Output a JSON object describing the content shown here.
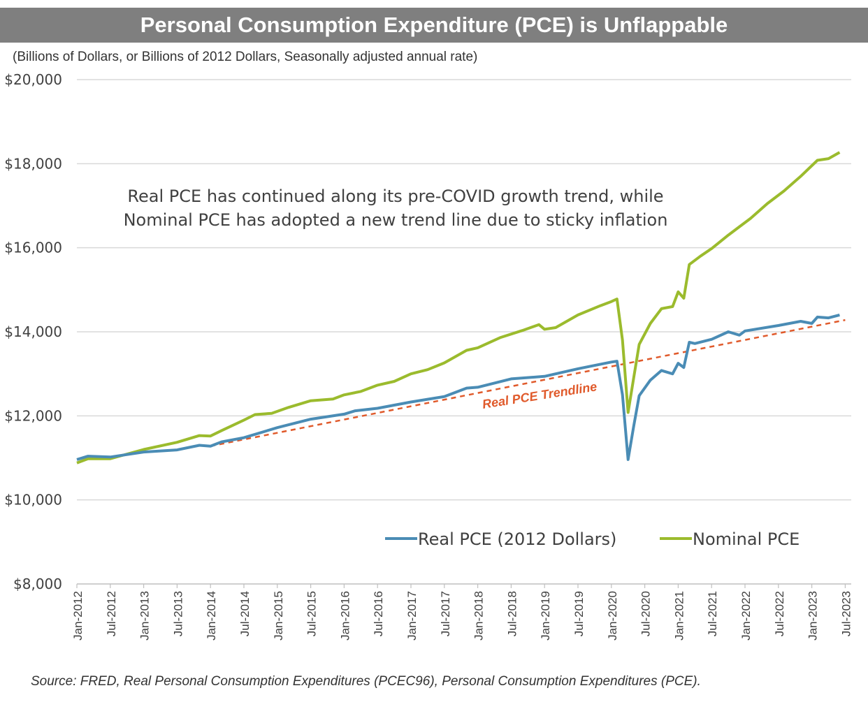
{
  "chart_data": {
    "type": "line",
    "title": "Personal Consumption Expenditure (PCE) is Unflappable",
    "subtitle": "(Billions of Dollars, or Billions of 2012 Dollars, Seasonally adjusted annual rate)",
    "source": "Source: FRED, Real Personal Consumption Expenditures (PCEC96), Personal Consumption Expenditures (PCE).",
    "annotation": {
      "line1": "Real PCE has continued along its pre-COVID growth trend, while",
      "line2": "Nominal PCE has adopted a new trend line due to sticky inflation"
    },
    "trendline_label": "Real PCE Trendline",
    "ylim": [
      8000,
      20000
    ],
    "y_ticks": [
      8000,
      10000,
      12000,
      14000,
      16000,
      18000,
      20000
    ],
    "y_tick_labels": [
      "$8,000",
      "$10,000",
      "$12,000",
      "$14,000",
      "$16,000",
      "$18,000",
      "$20,000"
    ],
    "x_tick_labels": [
      "Jan-2012",
      "Jul-2012",
      "Jan-2013",
      "Jul-2013",
      "Jan-2014",
      "Jul-2014",
      "Jan-2015",
      "Jul-2015",
      "Jan-2016",
      "Jul-2016",
      "Jan-2017",
      "Jul-2017",
      "Jan-2018",
      "Jul-2018",
      "Jan-2019",
      "Jul-2019",
      "Jan-2020",
      "Jul-2020",
      "Jan-2021",
      "Jul-2021",
      "Jan-2022",
      "Jul-2022",
      "Jan-2023",
      "Jul-2023"
    ],
    "x_tick_months": [
      0,
      6,
      12,
      18,
      24,
      30,
      36,
      42,
      48,
      54,
      60,
      66,
      72,
      78,
      84,
      90,
      96,
      102,
      108,
      114,
      120,
      126,
      132,
      138
    ],
    "grid": true,
    "series": [
      {
        "name": "Real PCE (2012 Dollars)",
        "color": "#4a8cb5",
        "points": [
          [
            0,
            10960
          ],
          [
            2,
            11040
          ],
          [
            6,
            11020
          ],
          [
            12,
            11140
          ],
          [
            18,
            11190
          ],
          [
            22,
            11300
          ],
          [
            24,
            11280
          ],
          [
            26,
            11380
          ],
          [
            30,
            11480
          ],
          [
            36,
            11720
          ],
          [
            42,
            11920
          ],
          [
            48,
            12040
          ],
          [
            50,
            12120
          ],
          [
            54,
            12180
          ],
          [
            60,
            12330
          ],
          [
            66,
            12460
          ],
          [
            70,
            12660
          ],
          [
            72,
            12680
          ],
          [
            78,
            12880
          ],
          [
            84,
            12940
          ],
          [
            90,
            13120
          ],
          [
            96,
            13280
          ],
          [
            97,
            13300
          ],
          [
            98,
            12500
          ],
          [
            99,
            10960
          ],
          [
            100,
            11750
          ],
          [
            101,
            12480
          ],
          [
            103,
            12850
          ],
          [
            105,
            13080
          ],
          [
            107,
            13000
          ],
          [
            108,
            13250
          ],
          [
            109,
            13150
          ],
          [
            110,
            13750
          ],
          [
            111,
            13720
          ],
          [
            114,
            13820
          ],
          [
            117,
            14000
          ],
          [
            119,
            13920
          ],
          [
            120,
            14020
          ],
          [
            126,
            14150
          ],
          [
            130,
            14250
          ],
          [
            132,
            14200
          ],
          [
            133,
            14350
          ],
          [
            135,
            14330
          ],
          [
            137,
            14400
          ]
        ]
      },
      {
        "name": "Nominal PCE",
        "color": "#9bbb2d",
        "points": [
          [
            0,
            10880
          ],
          [
            2,
            10980
          ],
          [
            6,
            10980
          ],
          [
            12,
            11200
          ],
          [
            18,
            11370
          ],
          [
            22,
            11530
          ],
          [
            24,
            11520
          ],
          [
            26,
            11650
          ],
          [
            30,
            11900
          ],
          [
            32,
            12030
          ],
          [
            35,
            12060
          ],
          [
            38,
            12200
          ],
          [
            42,
            12360
          ],
          [
            46,
            12400
          ],
          [
            48,
            12500
          ],
          [
            51,
            12580
          ],
          [
            54,
            12730
          ],
          [
            57,
            12820
          ],
          [
            60,
            13000
          ],
          [
            63,
            13100
          ],
          [
            66,
            13260
          ],
          [
            70,
            13560
          ],
          [
            72,
            13620
          ],
          [
            76,
            13860
          ],
          [
            80,
            14030
          ],
          [
            83,
            14170
          ],
          [
            84,
            14060
          ],
          [
            86,
            14100
          ],
          [
            90,
            14400
          ],
          [
            94,
            14620
          ],
          [
            96,
            14720
          ],
          [
            97,
            14780
          ],
          [
            98,
            13800
          ],
          [
            99,
            12080
          ],
          [
            100,
            12900
          ],
          [
            101,
            13700
          ],
          [
            103,
            14200
          ],
          [
            105,
            14550
          ],
          [
            107,
            14600
          ],
          [
            108,
            14950
          ],
          [
            109,
            14800
          ],
          [
            110,
            15600
          ],
          [
            112,
            15800
          ],
          [
            114,
            15980
          ],
          [
            117,
            16300
          ],
          [
            119,
            16500
          ],
          [
            121,
            16700
          ],
          [
            124,
            17050
          ],
          [
            127,
            17350
          ],
          [
            130,
            17700
          ],
          [
            133,
            18080
          ],
          [
            135,
            18120
          ],
          [
            137,
            18270
          ]
        ]
      }
    ],
    "trendline": {
      "name": "Real PCE Trendline",
      "color": "#e05a2b",
      "start": [
        24,
        11280
      ],
      "end": [
        138,
        14280
      ]
    }
  }
}
